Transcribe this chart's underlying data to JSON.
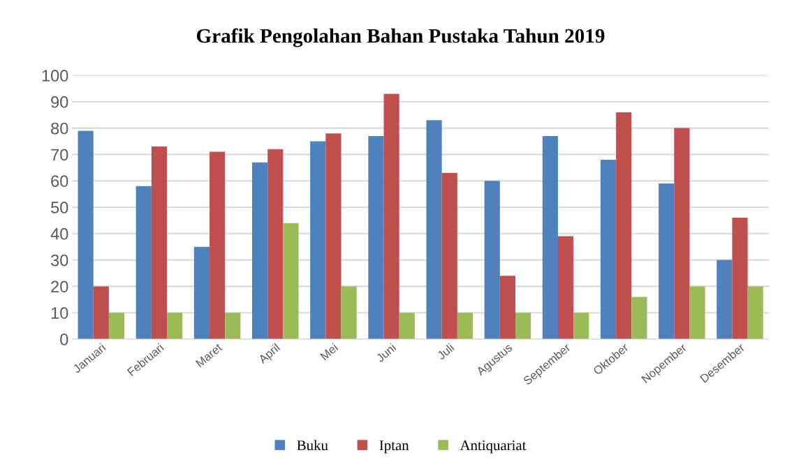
{
  "chart_data": {
    "type": "bar",
    "title": "Grafik Pengolahan Bahan Pustaka Tahun 2019",
    "categories": [
      "Januari",
      "Februari",
      "Maret",
      "April",
      "Mei",
      "Juni",
      "Juli",
      "Agustus",
      "September",
      "Oktober",
      "Nopember",
      "Desember"
    ],
    "series": [
      {
        "name": "Buku",
        "color": "#4f81bd",
        "values": [
          79,
          58,
          35,
          67,
          75,
          77,
          83,
          60,
          77,
          68,
          59,
          30
        ]
      },
      {
        "name": "Iptan",
        "color": "#c0504d",
        "values": [
          20,
          73,
          71,
          72,
          78,
          93,
          63,
          24,
          39,
          86,
          80,
          46
        ]
      },
      {
        "name": "Antiquariat",
        "color": "#9bbb59",
        "values": [
          10,
          10,
          10,
          44,
          20,
          10,
          10,
          10,
          10,
          16,
          20,
          20
        ]
      }
    ],
    "ylim": [
      0,
      100
    ],
    "yticks": [
      0,
      10,
      20,
      30,
      40,
      50,
      60,
      70,
      80,
      90,
      100
    ],
    "grid": "y",
    "legend": "bottom"
  }
}
